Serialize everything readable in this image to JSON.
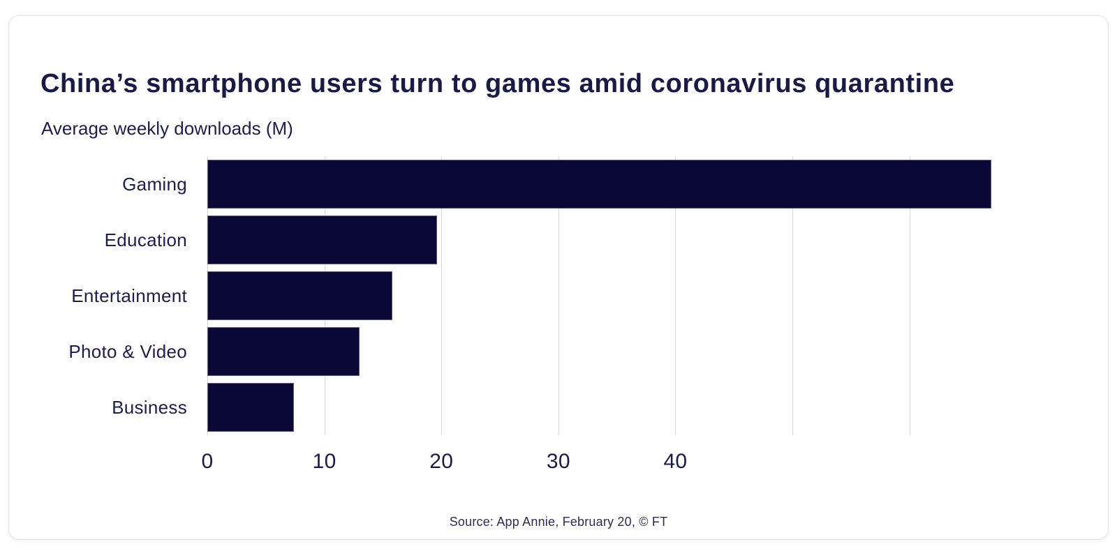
{
  "chart_data": {
    "type": "bar",
    "orientation": "horizontal",
    "title": "China’s smartphone users turn to games amid coronavirus quarantine",
    "subtitle": "Average weekly downloads (M)",
    "categories": [
      "Gaming",
      "Education",
      "Entertainment",
      "Photo & Video",
      "Business"
    ],
    "values": [
      67,
      19.6,
      15.8,
      13,
      7.4
    ],
    "xlabel": "",
    "ylabel": "",
    "xlim": [
      0,
      67
    ],
    "xticks_labeled": [
      0,
      10,
      20,
      30,
      40
    ],
    "gridlines": [
      0,
      10,
      20,
      30,
      40,
      50,
      60
    ],
    "grid": true,
    "legend": "none",
    "source": "Source: App Annie, February 20, © FT",
    "colors": {
      "bar": "#0a0834",
      "title_text": "#1a1a44",
      "label_text": "#1e1e48",
      "gridline": "#d8d8dc",
      "source_text": "#2c2c50",
      "card_border": "#e1e1e6",
      "background": "#ffffff"
    }
  }
}
